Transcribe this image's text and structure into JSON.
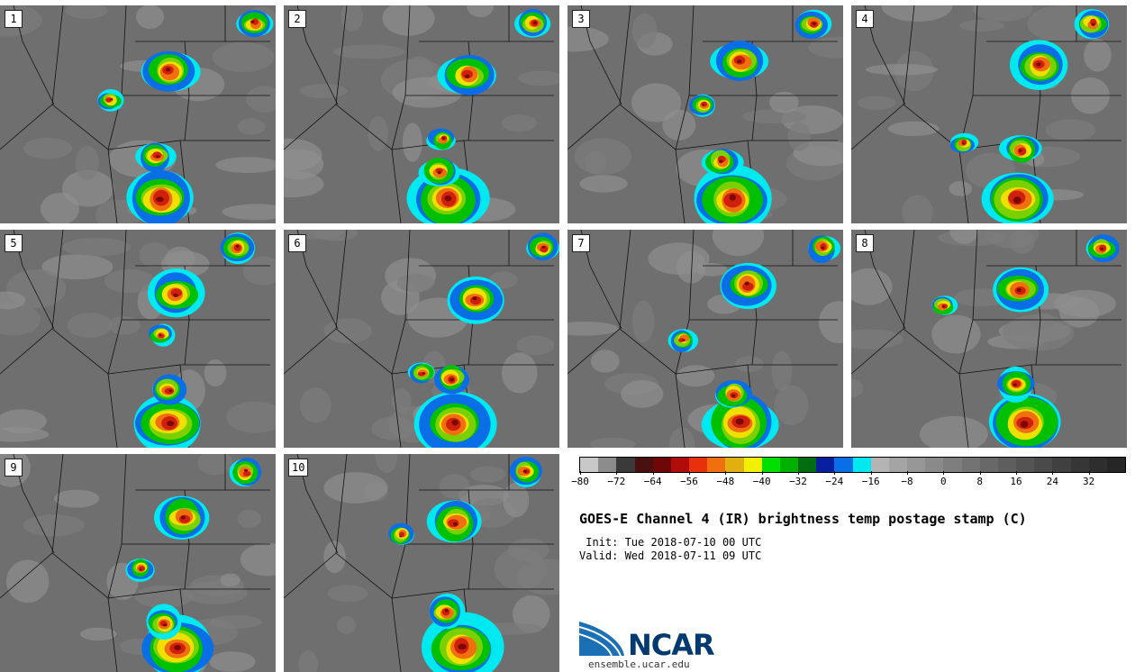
{
  "figure": {
    "title": "GOES-E Channel 4 (IR) brightness temp postage stamp (C)",
    "init": " Init: Tue 2018-07-10 00 UTC",
    "valid": "Valid: Wed 2018-07-11 09 UTC",
    "logo_text": "NCAR",
    "logo_url": "ensemble.ucar.edu"
  },
  "panels": [
    {
      "label": "1"
    },
    {
      "label": "2"
    },
    {
      "label": "3"
    },
    {
      "label": "4"
    },
    {
      "label": "5"
    },
    {
      "label": "6"
    },
    {
      "label": "7"
    },
    {
      "label": "8"
    },
    {
      "label": "9"
    },
    {
      "label": "10"
    }
  ],
  "colorbar": {
    "unit": "C",
    "min": -80,
    "max": 40,
    "step": 4,
    "tick_labels": [
      "−80",
      "−72",
      "−64",
      "−56",
      "−48",
      "−40",
      "−32",
      "−24",
      "−16",
      "−8",
      "0",
      "8",
      "16",
      "24",
      "32"
    ],
    "tick_values": [
      -80,
      -72,
      -64,
      -56,
      -48,
      -40,
      -32,
      -24,
      -16,
      -8,
      0,
      8,
      16,
      24,
      32
    ],
    "colors": [
      "#c8c8c8",
      "#8c8c8c",
      "#3a3a3a",
      "#4a1010",
      "#6e0808",
      "#b00c0c",
      "#e8300c",
      "#f07010",
      "#e0b010",
      "#f0f000",
      "#00e000",
      "#00b000",
      "#006e10",
      "#0a1ea0",
      "#0a6ee6",
      "#00e8f0",
      "#b4b4b4",
      "#a4a4a4",
      "#969696",
      "#8a8a8a",
      "#7e7e7e",
      "#727272",
      "#686868",
      "#5e5e5e",
      "#545454",
      "#4a4a4a",
      "#404040",
      "#363636",
      "#2e2e2e",
      "#262626"
    ]
  },
  "colors": {
    "background_gray": "#6b6b6b",
    "ncar_blue": "#003a70"
  }
}
